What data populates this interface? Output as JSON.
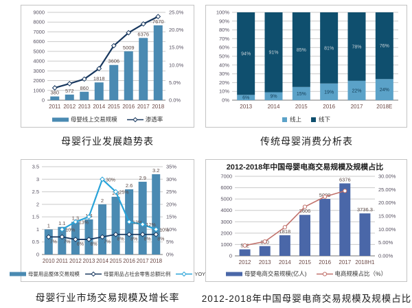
{
  "page": {
    "background": "#ffffff"
  },
  "colors": {
    "grid": "#c9c9c9",
    "baseline": "#8f8f8f",
    "tick_text": "#565060",
    "category_text": "#6b4845",
    "data_label_text": "#5c4a46",
    "teal_bar": "#4a8ab2",
    "navy_line": "#17375e",
    "bright_blue_line": "#29a3d8",
    "light_blue_bar": "#5ba2c8",
    "dark_navy_bar": "#0f4f6e",
    "indigo_bar": "#4a67a8",
    "salmon_line": "#c0706a"
  },
  "chart_data": [
    {
      "type": "bar-line",
      "caption": "母婴行业发展趋势表",
      "categories": [
        "2011",
        "2012",
        "2013",
        "2014",
        "2015",
        "2016",
        "2017",
        "2018"
      ],
      "left_axis": {
        "min": 0,
        "max": 9000,
        "ticks": [
          "0",
          "1000",
          "2000",
          "3000",
          "4000",
          "5000",
          "6000",
          "7000",
          "8000",
          "9000"
        ]
      },
      "right_axis": {
        "min": 0,
        "max": 25,
        "ticks": [
          "0.0%",
          "5.0%",
          "10.0%",
          "15.0%",
          "20.0%",
          "25.0%"
        ]
      },
      "bars": {
        "name": "母婴线上交易规模",
        "color": "#4a8ab2",
        "values": [
          380,
          572,
          860,
          1818,
          3606,
          5009,
          6376,
          7670
        ],
        "labels": [
          "380",
          "572",
          "860",
          "1818",
          "3606",
          "5009",
          "6376",
          "7670"
        ]
      },
      "lines": [
        {
          "name": "渗透率",
          "color": "#17375e",
          "marker": "diamond",
          "width": 2.2,
          "values": [
            3.5,
            4.7,
            6.0,
            9.0,
            15.5,
            19.2,
            21.7,
            23.8
          ],
          "labels": [],
          "label_pos": "right"
        }
      ],
      "legend": [
        {
          "type": "bar",
          "label": "母婴线上交易规模",
          "color": "#4a8ab2"
        },
        {
          "type": "line-diamond",
          "label": "渗透率",
          "color": "#17375e"
        }
      ]
    },
    {
      "type": "stacked-bar",
      "caption": "传统母婴消费分析表",
      "categories": [
        "2013",
        "2014",
        "2015",
        "2016",
        "2017",
        "2018E"
      ],
      "left_axis": {
        "min": 0,
        "max": 100,
        "ticks": [
          "0%",
          "10%",
          "20%",
          "30%",
          "40%",
          "50%",
          "60%",
          "70%",
          "80%",
          "90%",
          "100%"
        ]
      },
      "series": [
        {
          "name": "线上",
          "color": "#5ba2c8",
          "values": [
            6,
            9,
            15,
            19,
            22,
            24
          ],
          "labels": [
            "6%",
            "9%",
            "15%",
            "19%",
            "22%",
            "24%"
          ],
          "label_color": "#123c55"
        },
        {
          "name": "线下",
          "color": "#0f4f6e",
          "values": [
            94,
            91,
            85,
            81,
            78,
            76
          ],
          "labels": [
            "94%",
            "91%",
            "85%",
            "81%",
            "78%",
            "76%"
          ],
          "label_color": "#c9d3d9"
        }
      ],
      "legend": [
        {
          "type": "square",
          "label": "线上",
          "color": "#5ba2c8"
        },
        {
          "type": "square",
          "label": "线下",
          "color": "#0f4f6e"
        }
      ]
    },
    {
      "type": "bar-line",
      "caption": "母婴行业市场交易规模及增长率",
      "categories": [
        "2010",
        "2011",
        "2012",
        "2013",
        "2014",
        "2015",
        "2016",
        "2017",
        "2018"
      ],
      "left_axis": {
        "min": 0,
        "max": 3.5,
        "ticks": [
          "0",
          "0.5",
          "1",
          "1.5",
          "2",
          "2.5",
          "3",
          "3.5"
        ]
      },
      "right_axis": {
        "min": 0,
        "max": 35,
        "ticks": [
          "0%",
          "5%",
          "10%",
          "15%",
          "20%",
          "25%",
          "30%",
          "35%"
        ]
      },
      "bars": {
        "name": "母婴用品整体交易规模",
        "color": "#4a8ab2",
        "values": [
          1,
          1.1,
          1.3,
          1.4,
          2,
          2.3,
          2.6,
          2.9,
          3.2
        ],
        "labels": [
          "1",
          "1.1",
          "1.3",
          "1.4",
          "2",
          "2.3",
          "2.6",
          "2.9",
          "3.2"
        ]
      },
      "lines": [
        {
          "name": "母婴用品占社会零售总额比例",
          "color": "#17375e",
          "marker": "diamond",
          "width": 1.8,
          "values": [
            7,
            7,
            6,
            6,
            7,
            8,
            8,
            8,
            8
          ],
          "labels": [
            "7%",
            "7%",
            "6%",
            "6%",
            "7%",
            "8%",
            "8%",
            "8%",
            "8%"
          ],
          "label_pos": "below"
        },
        {
          "name": "YOY",
          "color": "#29a3d8",
          "marker": "diamond",
          "width": 2.2,
          "values": [
            null,
            10,
            13,
            15,
            30,
            25,
            13,
            12,
            10
          ],
          "labels": [
            "",
            "10%",
            "13%",
            "",
            "30%",
            "25%",
            "13%",
            "12%",
            "10%"
          ],
          "label_pos": "right"
        }
      ],
      "legend": [
        {
          "type": "bar",
          "label": "母婴用品整体交易规模",
          "color": "#4a8ab2"
        },
        {
          "type": "line-diamond",
          "label": "母婴用品占社会零售总额比例",
          "color": "#17375e"
        },
        {
          "type": "line-diamond",
          "label": "YOY",
          "color": "#29a3d8"
        }
      ]
    },
    {
      "type": "bar-line",
      "title": "2012-2018年中国母婴电商交易规模及规模占比",
      "caption": "2012-2018年中国母婴电商交易规模及规模占比",
      "categories": [
        "2012",
        "2013",
        "2014",
        "2015",
        "2016",
        "2017",
        "2018H1"
      ],
      "left_axis": {
        "min": 0,
        "max": 7000,
        "ticks": [
          "0",
          "1000",
          "2000",
          "3000",
          "4000",
          "5000",
          "6000",
          "7000"
        ]
      },
      "right_axis": {
        "min": 0,
        "max": 30,
        "ticks": [
          "0.00%",
          "5.00%",
          "10.00%",
          "15.00%",
          "20.00%",
          "25.00%",
          "30.00%"
        ]
      },
      "bars": {
        "name": "母婴电商交易规模(亿人)",
        "color": "#4a67a8",
        "values": [
          572,
          860,
          1818,
          3606,
          5009,
          6376,
          3736.3
        ],
        "labels": [
          "572",
          "860",
          "1818",
          "3606",
          "5009",
          "6376",
          "3736.3"
        ]
      },
      "lines": [
        {
          "name": "电商规模占比（%）",
          "color": "#c0706a",
          "marker": "circle",
          "width": 1.6,
          "values": [
            3.9,
            5.4,
            10.8,
            18.5,
            22.3,
            24.5,
            null
          ],
          "labels": [],
          "label_pos": "right"
        }
      ],
      "legend": [
        {
          "type": "bar",
          "label": "母婴电商交易规模(亿人)",
          "color": "#4a67a8"
        },
        {
          "type": "line-circle",
          "label": "电商规模占比（%）",
          "color": "#c0706a"
        }
      ]
    }
  ]
}
